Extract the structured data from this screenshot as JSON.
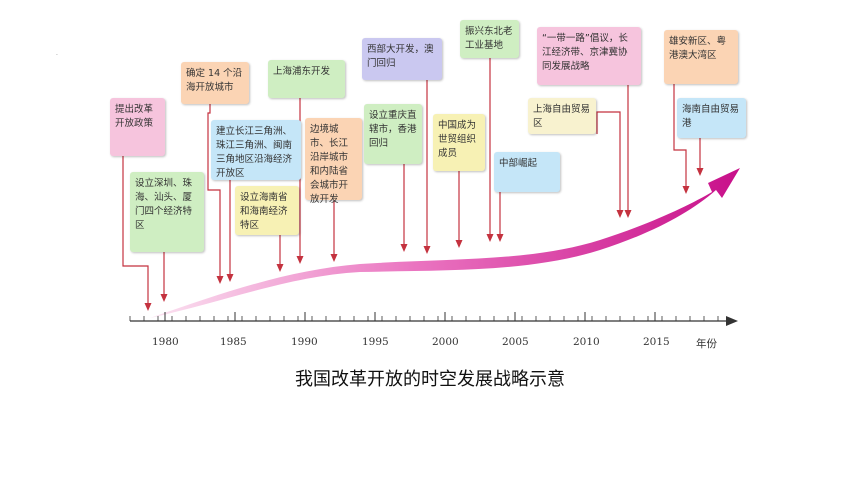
{
  "caption": "我国改革开放的时空发展战略示意",
  "axis": {
    "unit_label": "年份",
    "ticks": [
      "1980",
      "1985",
      "1990",
      "1995",
      "2000",
      "2005",
      "2010",
      "2015"
    ]
  },
  "events": [
    {
      "text": "提出改革开放政策",
      "color": "#f6c4dd"
    },
    {
      "text": "设立深圳、珠海、汕头、厦门四个经济特区",
      "color": "#cfeec2"
    },
    {
      "text": "确定 14 个沿海开放城市",
      "color": "#fbd4b4"
    },
    {
      "text": "建立长江三角洲、珠江三角洲、闽南三角地区沿海经济开放区",
      "color": "#c5e6f8"
    },
    {
      "text": "设立海南省和海南经济特区",
      "color": "#f7f1b4"
    },
    {
      "text": "上海浦东开发",
      "color": "#cfeec2"
    },
    {
      "text": "边境城市、长江沿岸城市和内陆省会城市开放开发",
      "color": "#fbd4b4"
    },
    {
      "text": "设立重庆直辖市，香港回归",
      "color": "#cfeec2"
    },
    {
      "text": "西部大开发，澳门回归",
      "color": "#cac8f0"
    },
    {
      "text": "中国成为世贸组织成员",
      "color": "#f7f1b4"
    },
    {
      "text": "振兴东北老工业基地",
      "color": "#cfeec2"
    },
    {
      "text": "中部崛起",
      "color": "#c5e6f8"
    },
    {
      "text": "上海自由贸易区",
      "color": "#f8f2cf"
    },
    {
      "text": "“一带一路”倡议，长江经济带、京津冀协同发展战略",
      "color": "#f6c4dd"
    },
    {
      "text": "雄安新区、粤港澳大湾区",
      "color": "#fbd4b4"
    },
    {
      "text": "海南自由贸易港",
      "color": "#c5e6f8"
    }
  ]
}
